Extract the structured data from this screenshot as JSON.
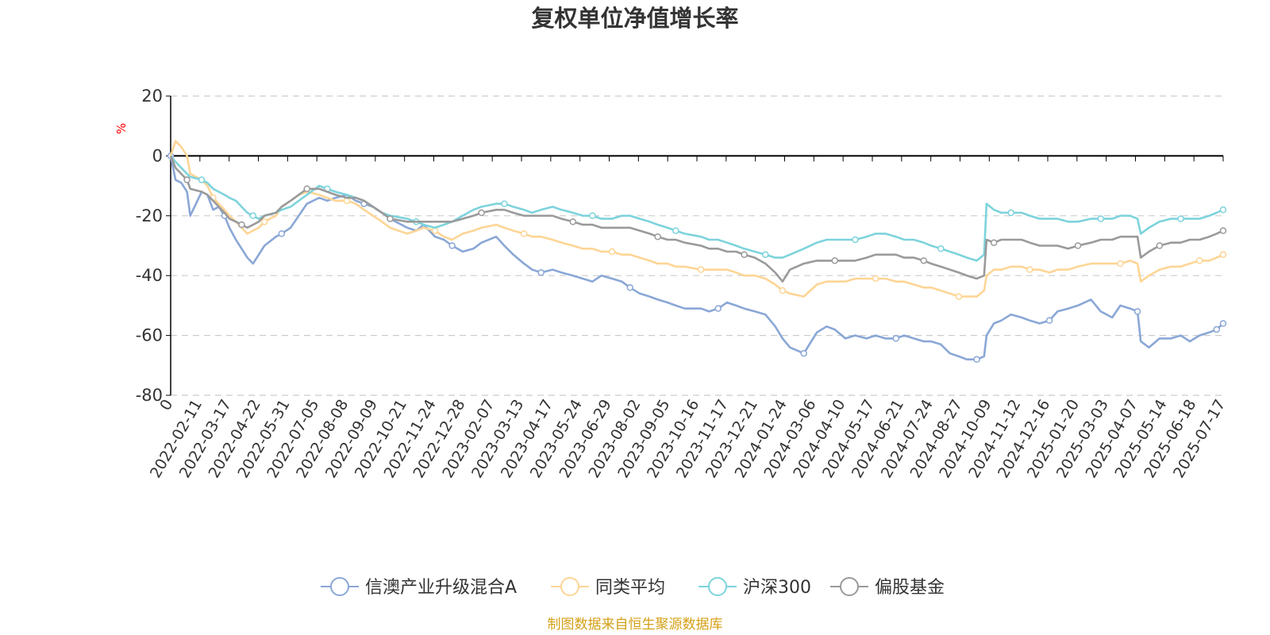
{
  "chart_data": {
    "type": "line",
    "title": "复权单位净值增长率",
    "ylabel": "%",
    "ylim": [
      -80,
      20
    ],
    "yticks": [
      "20",
      "0",
      "-20",
      "-40",
      "-60",
      "-80"
    ],
    "grid": true,
    "legend_position": "bottom",
    "x_tick_labels": [
      "0",
      "2022-02-11",
      "2022-03-17",
      "2022-04-22",
      "2022-05-31",
      "2022-07-05",
      "2022-08-08",
      "2022-09-09",
      "2022-10-21",
      "2022-11-24",
      "2022-12-28",
      "2023-02-07",
      "2023-03-13",
      "2023-04-17",
      "2023-05-24",
      "2023-06-29",
      "2023-08-02",
      "2023-09-05",
      "2023-10-16",
      "2023-11-17",
      "2023-12-21",
      "2024-01-24",
      "2024-03-06",
      "2024-04-10",
      "2024-05-17",
      "2024-06-21",
      "2024-07-24",
      "2024-08-27",
      "2024-10-09",
      "2024-11-12",
      "2024-12-16",
      "2025-01-20",
      "2025-03-03",
      "2025-04-07",
      "2025-05-14",
      "2025-06-18",
      "2025-07-17"
    ],
    "x": [
      "2022-01-04",
      "2022-01-10",
      "2022-01-17",
      "2022-01-24",
      "2022-01-28",
      "2022-02-11",
      "2022-02-18",
      "2022-02-25",
      "2022-03-04",
      "2022-03-11",
      "2022-03-17",
      "2022-03-25",
      "2022-04-01",
      "2022-04-08",
      "2022-04-15",
      "2022-04-22",
      "2022-04-29",
      "2022-05-13",
      "2022-05-20",
      "2022-05-31",
      "2022-06-10",
      "2022-06-20",
      "2022-07-05",
      "2022-07-15",
      "2022-07-25",
      "2022-08-08",
      "2022-08-19",
      "2022-08-29",
      "2022-09-09",
      "2022-09-20",
      "2022-09-30",
      "2022-10-21",
      "2022-11-01",
      "2022-11-10",
      "2022-11-24",
      "2022-12-05",
      "2022-12-15",
      "2022-12-28",
      "2023-01-10",
      "2023-01-20",
      "2023-02-07",
      "2023-02-17",
      "2023-02-28",
      "2023-03-13",
      "2023-03-23",
      "2023-04-03",
      "2023-04-17",
      "2023-04-28",
      "2023-05-12",
      "2023-05-24",
      "2023-06-05",
      "2023-06-16",
      "2023-06-29",
      "2023-07-11",
      "2023-07-21",
      "2023-08-02",
      "2023-08-14",
      "2023-08-24",
      "2023-09-05",
      "2023-09-15",
      "2023-09-26",
      "2023-10-16",
      "2023-10-26",
      "2023-11-06",
      "2023-11-17",
      "2023-11-28",
      "2023-12-08",
      "2023-12-21",
      "2024-01-03",
      "2024-01-15",
      "2024-01-24",
      "2024-02-02",
      "2024-02-19",
      "2024-03-06",
      "2024-03-18",
      "2024-03-28",
      "2024-04-10",
      "2024-04-22",
      "2024-05-06",
      "2024-05-17",
      "2024-05-29",
      "2024-06-11",
      "2024-06-21",
      "2024-07-03",
      "2024-07-15",
      "2024-07-24",
      "2024-08-05",
      "2024-08-16",
      "2024-08-27",
      "2024-09-06",
      "2024-09-18",
      "2024-09-27",
      "2024-09-30",
      "2024-10-09",
      "2024-10-18",
      "2024-10-30",
      "2024-11-12",
      "2024-11-22",
      "2024-12-04",
      "2024-12-16",
      "2024-12-26",
      "2025-01-08",
      "2025-01-20",
      "2025-02-05",
      "2025-02-17",
      "2025-03-03",
      "2025-03-13",
      "2025-03-25",
      "2025-04-03",
      "2025-04-07",
      "2025-04-17",
      "2025-04-30",
      "2025-05-14",
      "2025-05-26",
      "2025-06-06",
      "2025-06-18",
      "2025-06-30",
      "2025-07-09",
      "2025-07-17"
    ],
    "series": [
      {
        "name": "信澳产业升级混合A",
        "color": "#8aa7d6",
        "values": [
          0,
          -8,
          -9,
          -12,
          -20,
          -12,
          -13,
          -18,
          -17,
          -20,
          -24,
          -28,
          -31,
          -34,
          -36,
          -33,
          -30,
          -27,
          -26,
          -24,
          -20,
          -16,
          -14,
          -15,
          -14,
          -13,
          -15,
          -16,
          -17,
          -19,
          -21,
          -24,
          -25,
          -23,
          -27,
          -28,
          -30,
          -32,
          -31,
          -29,
          -27,
          -30,
          -33,
          -36,
          -38,
          -39,
          -38,
          -39,
          -40,
          -41,
          -42,
          -40,
          -41,
          -42,
          -44,
          -46,
          -47,
          -48,
          -49,
          -50,
          -51,
          -51,
          -52,
          -51,
          -49,
          -50,
          -51,
          -52,
          -53,
          -57,
          -61,
          -64,
          -66,
          -59,
          -57,
          -58,
          -61,
          -60,
          -61,
          -60,
          -61,
          -61,
          -60,
          -61,
          -62,
          -62,
          -63,
          -66,
          -67,
          -68,
          -68,
          -67,
          -60,
          -56,
          -55,
          -53,
          -54,
          -55,
          -56,
          -55,
          -52,
          -51,
          -50,
          -48,
          -52,
          -54,
          -50,
          -51,
          -52,
          -62,
          -64,
          -61,
          -61,
          -60,
          -62,
          -60,
          -59,
          -58,
          -56
        ]
      },
      {
        "name": "同类平均",
        "color": "#fdd595",
        "values": [
          0,
          5,
          3,
          0,
          -6,
          -8,
          -10,
          -14,
          -16,
          -18,
          -20,
          -22,
          -24,
          -26,
          -25,
          -24,
          -22,
          -20,
          -17,
          -15,
          -13,
          -12,
          -13,
          -14,
          -15,
          -15,
          -16,
          -18,
          -20,
          -22,
          -24,
          -26,
          -25,
          -24,
          -25,
          -27,
          -28,
          -26,
          -25,
          -24,
          -23,
          -24,
          -25,
          -26,
          -27,
          -27,
          -28,
          -29,
          -30,
          -31,
          -31,
          -32,
          -32,
          -33,
          -33,
          -34,
          -35,
          -36,
          -36,
          -37,
          -37,
          -38,
          -38,
          -38,
          -38,
          -39,
          -40,
          -40,
          -41,
          -43,
          -45,
          -46,
          -47,
          -43,
          -42,
          -42,
          -42,
          -41,
          -41,
          -41,
          -41,
          -42,
          -42,
          -43,
          -44,
          -44,
          -45,
          -46,
          -47,
          -47,
          -47,
          -45,
          -40,
          -38,
          -38,
          -37,
          -37,
          -38,
          -38,
          -39,
          -38,
          -38,
          -37,
          -36,
          -36,
          -36,
          -36,
          -35,
          -36,
          -42,
          -40,
          -38,
          -37,
          -37,
          -36,
          -35,
          -35,
          -34,
          -33
        ]
      },
      {
        "name": "沪深300",
        "color": "#7dd3dc",
        "values": [
          0,
          -2,
          -4,
          -6,
          -7,
          -8,
          -9,
          -11,
          -12,
          -13,
          -14,
          -15,
          -17,
          -19,
          -20,
          -21,
          -20,
          -19,
          -18,
          -17,
          -15,
          -13,
          -10,
          -11,
          -12,
          -13,
          -14,
          -15,
          -17,
          -19,
          -20,
          -21,
          -22,
          -23,
          -24,
          -23,
          -22,
          -20,
          -18,
          -17,
          -16,
          -16,
          -17,
          -18,
          -19,
          -18,
          -17,
          -18,
          -19,
          -20,
          -20,
          -21,
          -21,
          -20,
          -20,
          -21,
          -22,
          -23,
          -24,
          -25,
          -26,
          -27,
          -28,
          -28,
          -29,
          -30,
          -31,
          -32,
          -33,
          -34,
          -34,
          -33,
          -31,
          -29,
          -28,
          -28,
          -28,
          -28,
          -27,
          -26,
          -26,
          -27,
          -28,
          -28,
          -29,
          -30,
          -31,
          -32,
          -33,
          -34,
          -35,
          -33,
          -16,
          -18,
          -19,
          -19,
          -19,
          -20,
          -21,
          -21,
          -21,
          -22,
          -22,
          -21,
          -21,
          -21,
          -20,
          -20,
          -21,
          -26,
          -24,
          -22,
          -21,
          -21,
          -21,
          -21,
          -20,
          -19,
          -18
        ]
      },
      {
        "name": "偏股基金",
        "color": "#9a9a9a",
        "values": [
          0,
          -4,
          -6,
          -8,
          -11,
          -12,
          -13,
          -15,
          -17,
          -19,
          -21,
          -22,
          -23,
          -24,
          -23,
          -22,
          -20,
          -19,
          -17,
          -15,
          -13,
          -11,
          -11,
          -12,
          -13,
          -14,
          -14,
          -15,
          -17,
          -19,
          -21,
          -22,
          -22,
          -22,
          -22,
          -22,
          -22,
          -21,
          -20,
          -19,
          -18,
          -18,
          -19,
          -20,
          -20,
          -20,
          -20,
          -21,
          -22,
          -23,
          -23,
          -24,
          -24,
          -24,
          -24,
          -25,
          -26,
          -27,
          -28,
          -28,
          -29,
          -30,
          -31,
          -31,
          -32,
          -32,
          -33,
          -34,
          -36,
          -39,
          -42,
          -38,
          -36,
          -35,
          -35,
          -35,
          -35,
          -35,
          -34,
          -33,
          -33,
          -33,
          -34,
          -34,
          -35,
          -36,
          -37,
          -38,
          -39,
          -40,
          -41,
          -40,
          -28,
          -29,
          -28,
          -28,
          -28,
          -29,
          -30,
          -30,
          -30,
          -31,
          -30,
          -29,
          -28,
          -28,
          -27,
          -27,
          -27,
          -34,
          -32,
          -30,
          -29,
          -29,
          -28,
          -28,
          -27,
          -26,
          -25
        ]
      }
    ]
  },
  "footer": {
    "source": "制图数据来自恒生聚源数据库"
  },
  "colors": {
    "title": "#333333",
    "unit": "#ff0000",
    "source": "#d4a017",
    "grid": "#cccccc",
    "axis": "#000000"
  }
}
